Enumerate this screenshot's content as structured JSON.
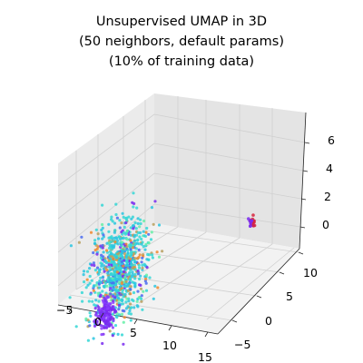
{
  "chart_data": {
    "type": "scatter3d",
    "title_lines": [
      "Unsupervised UMAP in 3D",
      "(50 neighbors, default params)",
      "(10% of training data)"
    ],
    "xlabel": "",
    "ylabel": "",
    "zlabel": "",
    "x_ticks": [
      "−5",
      "0",
      "5",
      "10",
      "15"
    ],
    "y_ticks": [
      "−5",
      "0",
      "5",
      "10"
    ],
    "z_ticks": [
      "0",
      "2",
      "4",
      "6"
    ],
    "xlim": [
      -7,
      16
    ],
    "ylim": [
      -8,
      12
    ],
    "zlim": [
      -1.5,
      6.8
    ],
    "grid": true,
    "colormap": "rainbow",
    "clusters": [
      {
        "name": "",
        "center": [
          2,
          1,
          2
        ],
        "spread": [
          1.4,
          2.5,
          1.6
        ],
        "count": 900,
        "dominant_color": "#35d7d6"
      },
      {
        "name": "",
        "center": [
          1.3,
          -1,
          -0.7
        ],
        "spread": [
          0.5,
          0.8,
          0.6
        ],
        "count": 160,
        "dominant_color": "#7a2cf0"
      },
      {
        "name": "",
        "center": [
          15.5,
          11,
          3.5
        ],
        "spread": [
          0.25,
          0.2,
          0.15
        ],
        "count": 25,
        "dominant_color": "#d8243c"
      }
    ]
  },
  "colors": {
    "pane_left": "#ebebeb",
    "pane_right": "#e4e4e4",
    "pane_floor": "#f2f2f2",
    "points": [
      "#7a2cf0",
      "#8a3cff",
      "#35d7d6",
      "#2cc6e0",
      "#66f0a8",
      "#b8a060",
      "#f08a30",
      "#d8243c",
      "#4b6cf0"
    ]
  }
}
